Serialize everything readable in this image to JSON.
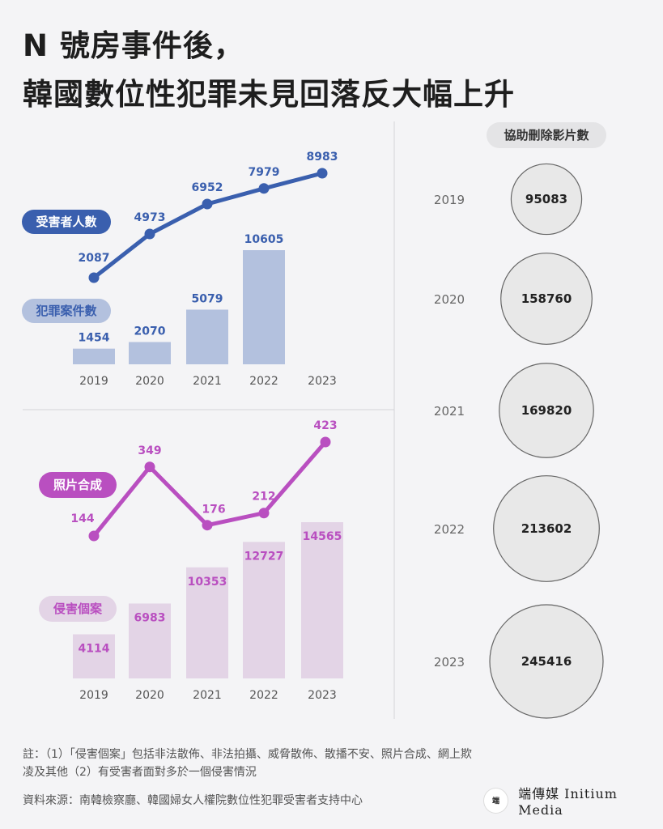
{
  "title_line1": "N 號房事件後，",
  "title_line2": "韓國數位性犯罪未見回落反大幅上升",
  "chart_data": [
    {
      "type": "line",
      "label": "受害者人數",
      "x": [
        "2019",
        "2020",
        "2021",
        "2022",
        "2023"
      ],
      "values": [
        2087,
        4973,
        6952,
        7979,
        8983
      ],
      "color": "#3a5fae"
    },
    {
      "type": "bar",
      "label": "犯罪案件數",
      "x": [
        "2019",
        "2020",
        "2021",
        "2022",
        "2023"
      ],
      "values": [
        1454,
        2070,
        5079,
        10605,
        null
      ],
      "color": "#b3c1de",
      "label_color": "#3a5fae"
    },
    {
      "type": "line",
      "label": "照片合成",
      "x": [
        "2019",
        "2020",
        "2021",
        "2022",
        "2023"
      ],
      "values": [
        144,
        349,
        176,
        212,
        423
      ],
      "color": "#b94fc0"
    },
    {
      "type": "bar",
      "label": "侵害個案",
      "x": [
        "2019",
        "2020",
        "2021",
        "2022",
        "2023"
      ],
      "values": [
        4114,
        6983,
        10353,
        12727,
        14565
      ],
      "color": "#e3d4e6",
      "label_color": "#b94fc0"
    },
    {
      "type": "bubble",
      "label": "協助刪除影片數",
      "x": [
        "2019",
        "2020",
        "2021",
        "2022",
        "2023"
      ],
      "values": [
        95083,
        158760,
        169820,
        213602,
        245416
      ],
      "color": "#e8e8e8"
    }
  ],
  "note": "註：（1）「侵害個案」包括非法散佈、非法拍攝、威脅散佈、散播不安、照片合成、網上欺凌及其他（2）有受害者面對多於一個侵害情況",
  "source": "資料來源：南韓檢察廳、韓國婦女人權院數位性犯罪受害者支持中心",
  "logo_mark": "端",
  "logo_text": "端傳媒 Initium Media",
  "colors": {
    "background": "#f4f4f6",
    "blue": "#3a5fae",
    "purple": "#b94fc0"
  }
}
